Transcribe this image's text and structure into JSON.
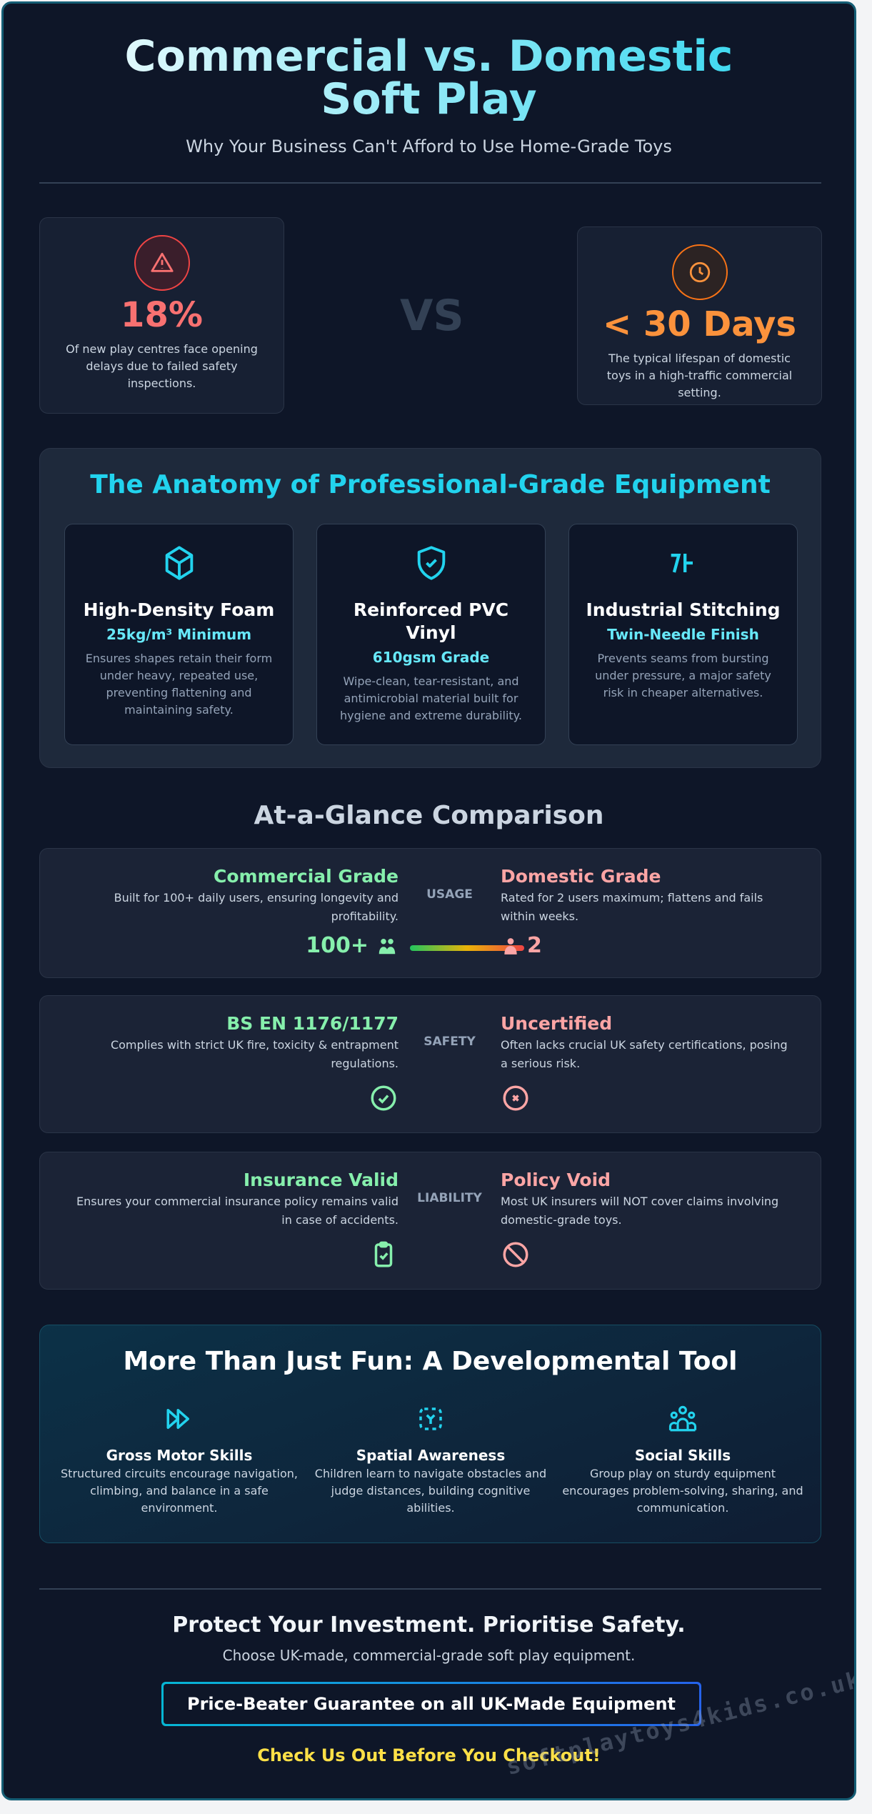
{
  "header": {
    "title": "Commercial vs. Domestic Soft Play",
    "subtitle": "Why Your Business Can't Afford to Use Home-Grade Toys"
  },
  "stats": {
    "left": {
      "icon": "warning-triangle-icon",
      "value": "18%",
      "desc": "Of new play centres face opening delays due to failed safety inspections.",
      "color": "#f87171"
    },
    "vs": "VS",
    "right": {
      "icon": "clock-icon",
      "value": "< 30 Days",
      "desc": "The typical lifespan of domestic toys in a high-traffic commercial setting.",
      "color": "#fb923c"
    }
  },
  "anatomy": {
    "title": "The Anatomy of Professional-Grade Equipment",
    "items": [
      {
        "icon": "cube-icon",
        "title": "High-Density Foam",
        "spec": "25kg/m³ Minimum",
        "desc": "Ensures shapes retain their form under heavy, repeated use, preventing flattening and maintaining safety."
      },
      {
        "icon": "shield-check-icon",
        "title": "Reinforced PVC Vinyl",
        "spec": "610gsm Grade",
        "desc": "Wipe-clean, tear-resistant, and antimicrobial material built for hygiene and extreme durability."
      },
      {
        "icon": "stitching-icon",
        "title": "Industrial Stitching",
        "spec": "Twin-Needle Finish",
        "desc": "Prevents seams from bursting under pressure, a major safety risk in cheaper alternatives."
      }
    ]
  },
  "comparison": {
    "title": "At-a-Glance Comparison",
    "rows": [
      {
        "label": "USAGE",
        "left": {
          "title": "Commercial Grade",
          "desc": "Built for 100+ daily users, ensuring longevity and profitability.",
          "value": "100+"
        },
        "right": {
          "title": "Domestic Grade",
          "desc": "Rated for 2 users maximum; flattens and fails within weeks.",
          "value": "2"
        }
      },
      {
        "label": "SAFETY",
        "left": {
          "title": "BS EN 1176/1177",
          "desc": "Complies with strict UK fire, toxicity & entrapment regulations.",
          "icon": "check-circle-icon"
        },
        "right": {
          "title": "Uncertified",
          "desc": "Often lacks crucial UK safety certifications, posing a serious risk.",
          "icon": "x-circle-icon"
        }
      },
      {
        "label": "LIABILITY",
        "left": {
          "title": "Insurance Valid",
          "desc": "Ensures your commercial insurance policy remains valid in case of accidents.",
          "icon": "clipboard-check-icon"
        },
        "right": {
          "title": "Policy Void",
          "desc": "Most UK insurers will NOT cover claims involving domestic-grade toys.",
          "icon": "ban-icon"
        }
      }
    ]
  },
  "development": {
    "title": "More Than Just Fun: A Developmental Tool",
    "items": [
      {
        "icon": "fast-forward-icon",
        "title": "Gross Motor Skills",
        "desc": "Structured circuits encourage navigation, climbing, and balance in a safe environment."
      },
      {
        "icon": "spatial-move-icon",
        "title": "Spatial Awareness",
        "desc": "Children learn to navigate obstacles and judge distances, building cognitive abilities."
      },
      {
        "icon": "group-icon",
        "title": "Social Skills",
        "desc": "Group play on sturdy equipment encourages problem-solving, sharing, and communication."
      }
    ]
  },
  "footer": {
    "title": "Protect Your Investment. Prioritise Safety.",
    "subtitle": "Choose UK-made, commercial-grade soft play equipment.",
    "button": "Price-Beater Guarantee on all UK-Made Equipment",
    "cta": "Check Us Out Before You Checkout!",
    "watermark": "softplaytoys4kids.co.uk"
  },
  "colors": {
    "accent": "#22d3ee",
    "commercial": "#86efac",
    "domestic": "#fca5a5",
    "cta": "#fde047"
  }
}
